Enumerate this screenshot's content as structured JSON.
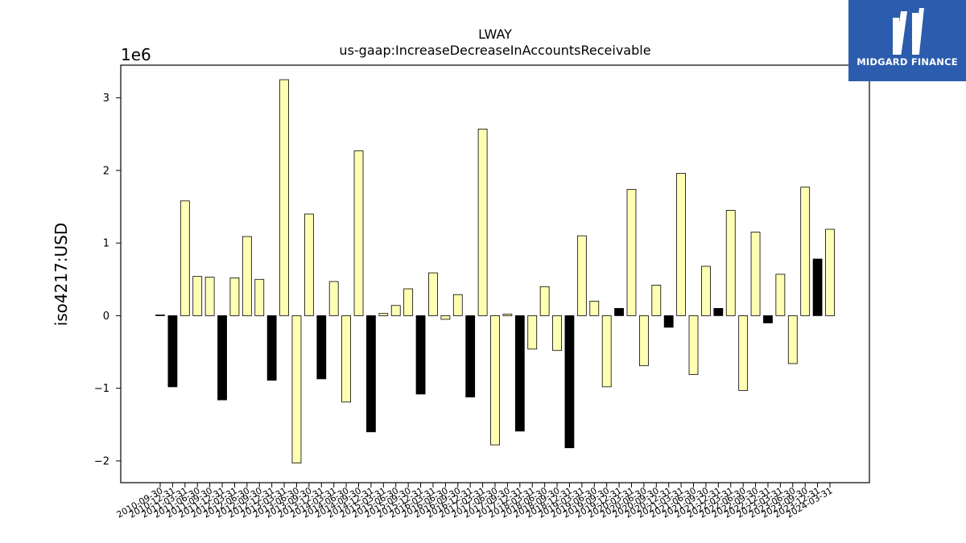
{
  "chart_data": {
    "type": "bar",
    "title": "LWAY",
    "subtitle": "us-gaap:IncreaseDecreaseInAccountsReceivable",
    "xlabel": "",
    "ylabel": "iso4217:USD",
    "scale_label": "1e6",
    "ylim": [
      -2.3,
      3.45
    ],
    "yticks": [
      -2,
      -1,
      0,
      1,
      2,
      3
    ],
    "ytick_labels": [
      "−2",
      "−1",
      "0",
      "1",
      "2",
      "3"
    ],
    "grid": false,
    "colors": {
      "positive": "#ffffb3",
      "negative": "#000000",
      "edge": "#000000"
    },
    "categories": [
      "2010-09-30",
      "2010-12-31",
      "2011-03-31",
      "2011-06-30",
      "2011-09-30",
      "2011-12-31",
      "2012-03-31",
      "2012-06-30",
      "2012-09-30",
      "2012-12-31",
      "2013-03-31",
      "2013-06-30",
      "2013-09-30",
      "2013-12-31",
      "2014-03-31",
      "2014-06-30",
      "2014-09-30",
      "2014-12-31",
      "2015-03-31",
      "2015-06-30",
      "2015-09-30",
      "2015-12-31",
      "2016-03-31",
      "2016-06-30",
      "2016-09-30",
      "2016-12-31",
      "2017-03-31",
      "2017-06-30",
      "2017-09-30",
      "2017-12-31",
      "2018-03-31",
      "2018-06-30",
      "2018-09-30",
      "2018-12-31",
      "2019-03-31",
      "2019-06-30",
      "2019-09-30",
      "2019-12-31",
      "2020-03-31",
      "2020-06-30",
      "2020-09-30",
      "2020-12-31",
      "2021-03-31",
      "2021-06-30",
      "2021-09-30",
      "2021-12-31",
      "2022-03-31",
      "2022-06-30",
      "2022-09-30",
      "2022-12-31",
      "2023-03-31",
      "2023-06-30",
      "2023-09-30",
      "2023-12-31",
      "2024-03-31"
    ],
    "values": [
      0.01,
      -0.98,
      1.58,
      0.54,
      0.53,
      -1.16,
      0.52,
      1.09,
      0.5,
      -0.89,
      3.25,
      -2.03,
      1.4,
      -0.87,
      0.47,
      -1.19,
      2.27,
      -1.6,
      0.03,
      0.14,
      0.37,
      -1.08,
      0.59,
      -0.05,
      0.29,
      -1.12,
      2.57,
      -1.78,
      0.02,
      -1.59,
      -0.46,
      0.4,
      -0.48,
      -1.82,
      1.1,
      0.2,
      -0.98,
      0.1,
      1.74,
      -0.69,
      0.42,
      -0.16,
      1.96,
      -0.81,
      0.68,
      0.1,
      1.45,
      -1.03,
      1.15,
      -0.1,
      0.57,
      -0.66,
      1.77,
      0.78,
      1.19
    ],
    "bar_colors": [
      "negative",
      "negative",
      "positive",
      "positive",
      "positive",
      "negative",
      "positive",
      "positive",
      "positive",
      "negative",
      "positive",
      "positive",
      "positive",
      "negative",
      "positive",
      "positive",
      "positive",
      "negative",
      "positive",
      "positive",
      "positive",
      "negative",
      "positive",
      "positive",
      "positive",
      "negative",
      "positive",
      "positive",
      "positive",
      "negative",
      "positive",
      "positive",
      "positive",
      "negative",
      "positive",
      "positive",
      "positive",
      "negative",
      "positive",
      "positive",
      "positive",
      "negative",
      "positive",
      "positive",
      "positive",
      "negative",
      "positive",
      "positive",
      "positive",
      "negative",
      "positive",
      "positive",
      "positive",
      "negative",
      "positive"
    ]
  },
  "logo": {
    "text": "MIDGARD FINANCE",
    "color": "#2b5cad"
  }
}
